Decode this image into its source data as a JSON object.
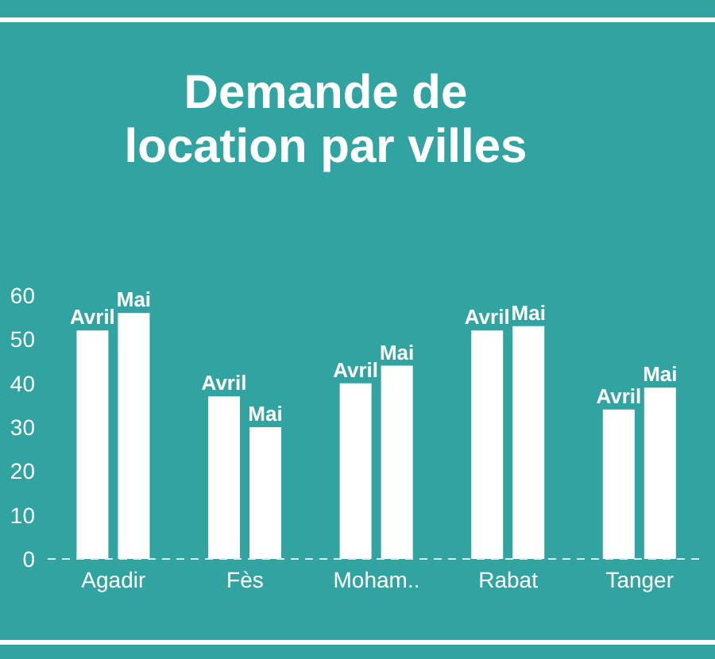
{
  "chart_data": {
    "type": "bar",
    "title": "Demande de location par villes",
    "categories": [
      "Agadir",
      "Fès",
      "Moham..",
      "Rabat",
      "Tanger"
    ],
    "series": [
      {
        "name": "Avril",
        "color": "#ffffff",
        "values": [
          52,
          37,
          40,
          52,
          34
        ]
      },
      {
        "name": "Mai",
        "color": "#ffffff",
        "values": [
          56,
          30,
          44,
          53,
          39
        ]
      }
    ],
    "ylim": [
      0,
      60
    ],
    "yticks": [
      0,
      10,
      20,
      30,
      40,
      50,
      60
    ],
    "grid": false,
    "legend": false
  }
}
